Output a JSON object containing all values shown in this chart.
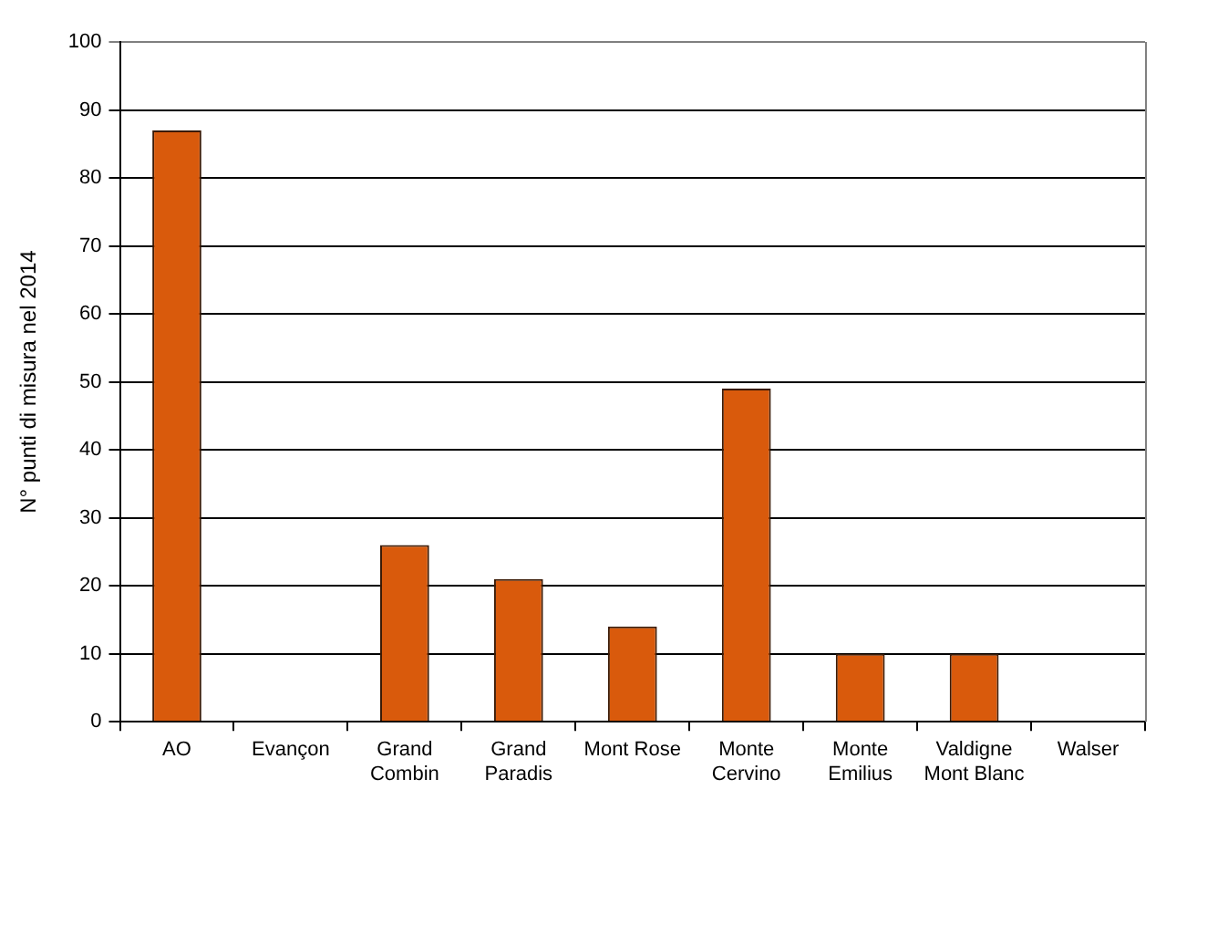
{
  "chart_data": {
    "type": "bar",
    "ylabel": "N° punti di misura nel 2014",
    "categories": [
      "AO",
      "Evançon",
      "Grand Combin",
      "Grand Paradis",
      "Mont Rose",
      "Monte Cervino",
      "Monte Emilius",
      "Valdigne Mont Blanc",
      "Walser"
    ],
    "values": [
      87,
      0,
      26,
      21,
      14,
      49,
      10,
      10,
      0
    ],
    "color": "#d95a0c",
    "ylim": [
      0,
      100
    ],
    "yticks": [
      0,
      10,
      20,
      30,
      40,
      50,
      60,
      70,
      80,
      90,
      100
    ],
    "grid": "y",
    "legend": false
  }
}
